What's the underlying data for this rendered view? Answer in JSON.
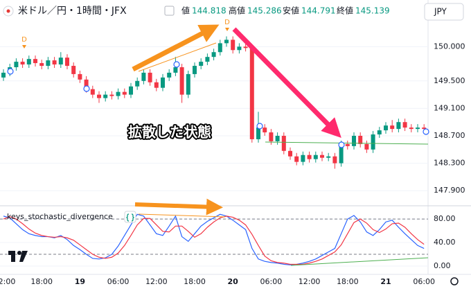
{
  "chart_data": [
    {
      "type": "candlestick",
      "title": "米ドル／円・1時間・JFX",
      "currency": "JPY",
      "ohlc_readout": [
        {
          "label": "値",
          "value": 144.818
        },
        {
          "label": "高値",
          "value": 145.286
        },
        {
          "label": "安値",
          "value": 144.791
        },
        {
          "label": "終値",
          "value": 145.139
        }
      ],
      "categories": [
        "2:00",
        null,
        null,
        null,
        null,
        null,
        "18:00",
        null,
        null,
        null,
        null,
        null,
        "19",
        null,
        null,
        null,
        null,
        null,
        "06:00",
        null,
        null,
        null,
        null,
        null,
        "12:00",
        null,
        null,
        null,
        null,
        null,
        "18:00",
        null,
        null,
        null,
        null,
        null,
        "20",
        null,
        null,
        null,
        null,
        null,
        "06:00",
        null,
        null,
        null,
        null,
        null,
        "12:00",
        null,
        null,
        null,
        null,
        null,
        "18:00",
        null,
        null,
        null,
        null,
        null,
        "21",
        null,
        null,
        null,
        null,
        null,
        "06:00"
      ],
      "open": [
        149.55,
        149.62,
        149.7,
        149.78,
        149.74,
        149.82,
        149.76,
        149.72,
        149.8,
        149.74,
        149.84,
        149.72,
        149.6,
        149.52,
        149.38,
        149.3,
        149.25,
        149.3,
        149.28,
        149.34,
        149.3,
        149.42,
        149.5,
        149.62,
        149.48,
        149.4,
        149.55,
        149.62,
        149.7,
        149.3,
        149.6,
        149.72,
        149.78,
        149.85,
        149.92,
        150.05,
        150.1,
        149.95,
        150.0,
        149.98,
        148.65,
        148.82,
        148.75,
        148.62,
        148.7,
        148.48,
        148.4,
        148.32,
        148.42,
        148.36,
        148.42,
        148.38,
        148.4,
        148.3,
        148.58,
        148.55,
        148.7,
        148.58,
        148.5,
        148.72,
        148.78,
        148.85,
        148.8,
        148.9,
        148.82,
        148.8,
        148.82
      ],
      "high": [
        149.67,
        149.75,
        149.83,
        149.83,
        149.87,
        149.87,
        149.81,
        149.85,
        149.85,
        149.92,
        149.89,
        149.77,
        149.65,
        149.57,
        149.43,
        149.35,
        149.35,
        149.35,
        149.39,
        149.39,
        149.47,
        149.55,
        149.67,
        149.67,
        149.53,
        149.6,
        149.67,
        149.85,
        149.75,
        149.65,
        149.77,
        149.83,
        149.9,
        149.97,
        150.1,
        150.15,
        150.15,
        150.05,
        150.05,
        150.03,
        149.05,
        148.87,
        148.8,
        148.75,
        148.75,
        148.53,
        148.45,
        148.47,
        148.47,
        148.47,
        148.47,
        148.45,
        148.45,
        148.63,
        148.63,
        148.75,
        148.75,
        148.63,
        148.77,
        148.83,
        148.9,
        148.93,
        148.95,
        148.95,
        148.87,
        148.87,
        148.87
      ],
      "low": [
        149.5,
        149.57,
        149.65,
        149.69,
        149.69,
        149.71,
        149.67,
        149.67,
        149.69,
        149.69,
        149.67,
        149.55,
        149.47,
        149.33,
        149.25,
        149.18,
        149.2,
        149.23,
        149.23,
        149.25,
        149.25,
        149.37,
        149.45,
        149.43,
        149.35,
        149.35,
        149.5,
        149.57,
        149.18,
        149.25,
        149.55,
        149.67,
        149.73,
        149.8,
        149.87,
        150.0,
        149.9,
        149.9,
        149.93,
        148.6,
        148.6,
        148.7,
        148.57,
        148.57,
        148.43,
        148.35,
        148.27,
        148.27,
        148.31,
        148.31,
        148.33,
        148.33,
        148.22,
        148.25,
        148.5,
        148.5,
        148.53,
        148.45,
        148.45,
        148.67,
        148.73,
        148.75,
        148.75,
        148.77,
        148.75,
        148.75,
        148.75
      ],
      "close": [
        149.62,
        149.7,
        149.78,
        149.74,
        149.82,
        149.76,
        149.72,
        149.8,
        149.74,
        149.84,
        149.72,
        149.6,
        149.52,
        149.38,
        149.3,
        149.25,
        149.3,
        149.28,
        149.34,
        149.3,
        149.42,
        149.5,
        149.62,
        149.48,
        149.4,
        149.55,
        149.62,
        149.7,
        149.3,
        149.6,
        149.72,
        149.78,
        149.85,
        149.92,
        150.05,
        150.1,
        149.95,
        150.0,
        149.98,
        148.65,
        148.82,
        148.75,
        148.62,
        148.7,
        148.48,
        148.4,
        148.32,
        148.42,
        148.36,
        148.42,
        148.38,
        148.4,
        148.3,
        148.58,
        148.55,
        148.7,
        148.58,
        148.5,
        148.72,
        148.78,
        148.85,
        148.8,
        148.9,
        148.82,
        148.8,
        148.82,
        148.8
      ],
      "up_color": "#089981",
      "down_color": "#f23645",
      "ylim": [
        147.7,
        150.68
      ],
      "yticks": [
        {
          "value": 150,
          "label": "150.000"
        },
        {
          "value": 149.5,
          "label": "149.500"
        },
        {
          "value": 149.1,
          "label": "149.100"
        },
        {
          "value": 148.7,
          "label": "148.700"
        },
        {
          "value": 148.3,
          "label": "148.300"
        },
        {
          "value": 147.9,
          "label": "147.900"
        }
      ],
      "grid": true,
      "signal_label": "D",
      "annotation": "拡散した状態"
    },
    {
      "type": "line",
      "title": "keys_stochastic_divergence",
      "series": [
        {
          "color": "#2962ff",
          "values": [
            85,
            82,
            72,
            62,
            55,
            52,
            50,
            50,
            48,
            52,
            45,
            35,
            28,
            20,
            13,
            12,
            14,
            20,
            34,
            52,
            70,
            88,
            85,
            70,
            55,
            52,
            68,
            85,
            50,
            42,
            55,
            68,
            76,
            82,
            88,
            85,
            78,
            70,
            62,
            30,
            12,
            8,
            6,
            5,
            3,
            2,
            3,
            5,
            8,
            12,
            18,
            24,
            30,
            55,
            80,
            86,
            75,
            58,
            52,
            62,
            75,
            78,
            66,
            55,
            45,
            35,
            30
          ]
        },
        {
          "color": "#f23645",
          "values": [
            80,
            84,
            80,
            72,
            63,
            56,
            52,
            50,
            49,
            50,
            48,
            44,
            36,
            28,
            20,
            15,
            13,
            15,
            22,
            35,
            52,
            70,
            81,
            81,
            70,
            59,
            58,
            68,
            68,
            59,
            49,
            55,
            66,
            75,
            82,
            85,
            83,
            78,
            70,
            54,
            35,
            17,
            9,
            6,
            5,
            3,
            3,
            3,
            5,
            8,
            12,
            18,
            24,
            36,
            55,
            74,
            80,
            73,
            62,
            57,
            63,
            72,
            73,
            66,
            55,
            45,
            37
          ]
        }
      ],
      "ylim": [
        -13,
        99
      ],
      "yticks": [
        {
          "value": 80,
          "label": "80.00"
        },
        {
          "value": 40,
          "label": "40.00"
        },
        {
          "value": 0,
          "label": "0.00"
        }
      ],
      "levels": [
        80,
        20
      ],
      "grid": true
    }
  ]
}
